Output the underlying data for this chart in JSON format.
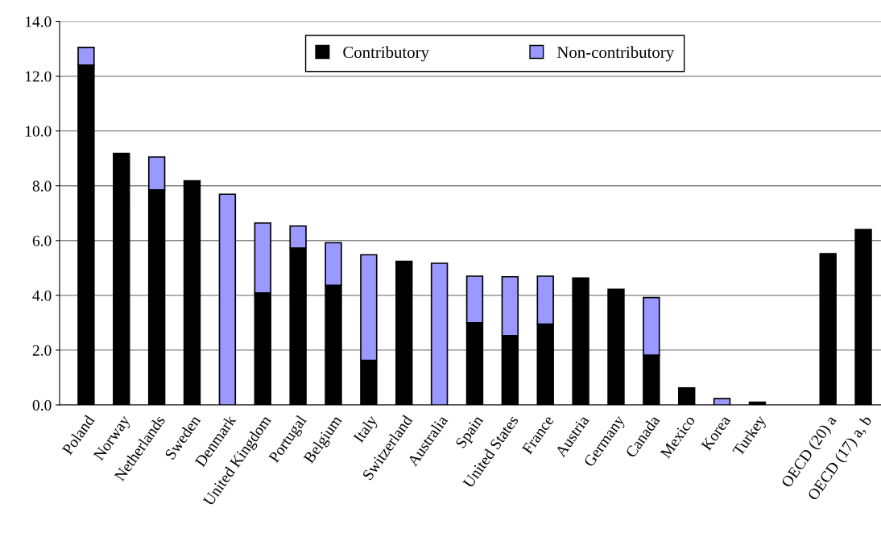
{
  "chart_data": {
    "type": "bar",
    "stacked": true,
    "categories": [
      "Poland",
      "Norway",
      "Netherlands",
      "Sweden",
      "Denmark",
      "United Kingdom",
      "Portugal",
      "Belgium",
      "Italy",
      "Switzerland",
      "Australia",
      "Spain",
      "United States",
      "France",
      "Austria",
      "Germany",
      "Canada",
      "Mexico",
      "Korea",
      "Turkey",
      null,
      "OECD (20) a",
      "OECD (17) a, b"
    ],
    "series": [
      {
        "name": "Contributory",
        "color": "#000000",
        "values": [
          12.4,
          9.18,
          7.85,
          8.18,
          0,
          4.09,
          5.73,
          4.37,
          1.63,
          5.24,
          0,
          3.0,
          2.53,
          2.95,
          4.63,
          4.22,
          1.82,
          0.62,
          null,
          0.1,
          null,
          5.52,
          6.4
        ]
      },
      {
        "name": "Non-contributory",
        "color": "#9999ff",
        "values": [
          0.65,
          0,
          1.2,
          0,
          7.69,
          2.55,
          0.8,
          1.55,
          3.85,
          0,
          5.17,
          1.7,
          2.15,
          1.75,
          0,
          0,
          2.1,
          0,
          0.23,
          0,
          null,
          0,
          0
        ]
      }
    ],
    "ylim": [
      0,
      14
    ],
    "yticks": [
      {
        "value": 0,
        "label": "0.0"
      },
      {
        "value": 2,
        "label": "2.0"
      },
      {
        "value": 4,
        "label": "4.0"
      },
      {
        "value": 6,
        "label": "6.0"
      },
      {
        "value": 8,
        "label": "8.0"
      },
      {
        "value": 10,
        "label": "10.0"
      },
      {
        "value": 12,
        "label": "12.0"
      },
      {
        "value": 14,
        "label": "14.0"
      }
    ],
    "grid": "y",
    "legend": "top"
  }
}
